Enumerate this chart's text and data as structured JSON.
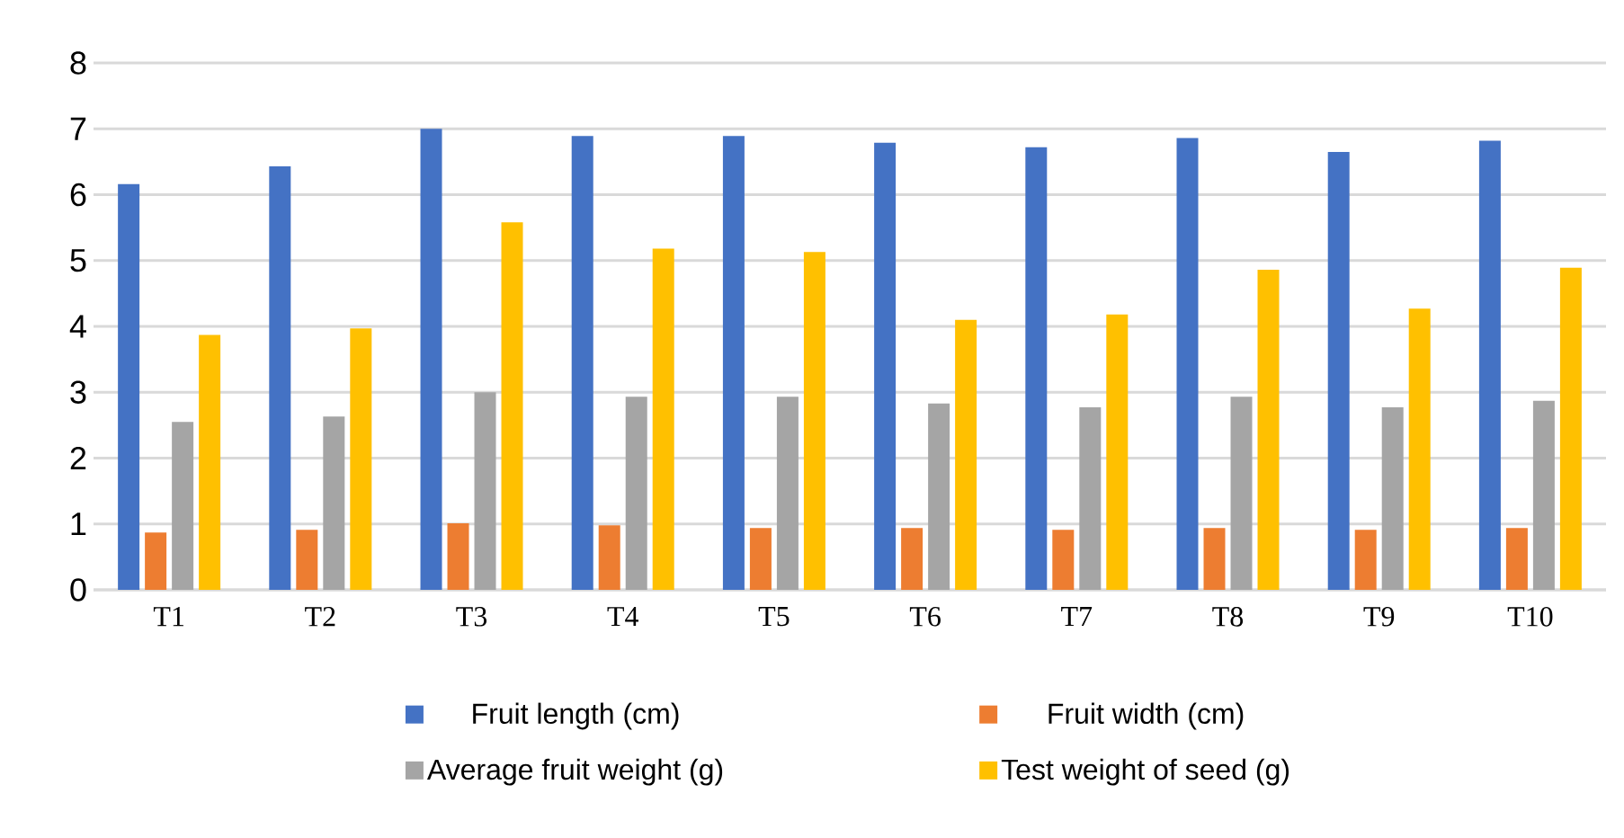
{
  "chart_data": {
    "type": "bar",
    "categories": [
      "T1",
      "T2",
      "T3",
      "T4",
      "T5",
      "T6",
      "T7",
      "T8",
      "T9",
      "T10"
    ],
    "series": [
      {
        "name": "Fruit length (cm)",
        "color": "#4472c4",
        "values": [
          6.16,
          6.43,
          7.0,
          6.89,
          6.89,
          6.79,
          6.72,
          6.86,
          6.65,
          6.82
        ]
      },
      {
        "name": "Fruit width (cm)",
        "color": "#ed7d31",
        "values": [
          0.87,
          0.91,
          1.01,
          0.98,
          0.94,
          0.94,
          0.91,
          0.94,
          0.91,
          0.94
        ]
      },
      {
        "name": "Average fruit weight (g)",
        "color": "#a5a5a5",
        "values": [
          2.55,
          2.63,
          3.0,
          2.93,
          2.93,
          2.83,
          2.77,
          2.93,
          2.77,
          2.87
        ]
      },
      {
        "name": "Test weight of seed (g)",
        "color": "#ffc000",
        "values": [
          3.87,
          3.97,
          5.58,
          5.18,
          5.13,
          4.1,
          4.18,
          4.86,
          4.27,
          4.89
        ]
      }
    ],
    "ylim": [
      0,
      8
    ],
    "yticks": [
      0,
      1,
      2,
      3,
      4,
      5,
      6,
      7,
      8
    ],
    "grid": "y",
    "legend": "bottom"
  }
}
